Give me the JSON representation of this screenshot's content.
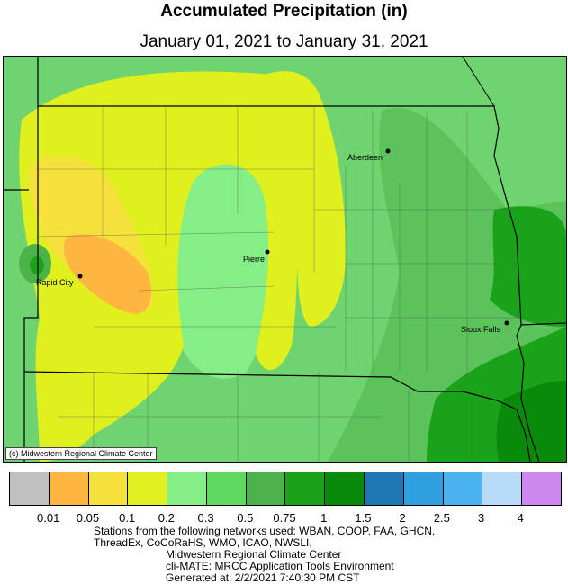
{
  "header": {
    "title": "Accumulated Precipitation (in)",
    "subtitle": "January 01, 2021 to January 31, 2021"
  },
  "map": {
    "credit": "(c) Midwestern Regional Climate Center",
    "cities": [
      "Aberdeen",
      "Pierre",
      "Rapid City",
      "Sioux Falls"
    ]
  },
  "legend": {
    "colors": [
      "#c0c0c0",
      "#ffb640",
      "#f5e03c",
      "#e0f020",
      "#86ee86",
      "#5fd85f",
      "#4cb34c",
      "#1aa31a",
      "#0a8a0a",
      "#1f78b4",
      "#2f9fe0",
      "#4ab4ee",
      "#b8dcf8",
      "#cc88ee"
    ],
    "labels": [
      "0.01",
      "0.05",
      "0.1",
      "0.2",
      "0.3",
      "0.5",
      "0.75",
      "1",
      "1.5",
      "2",
      "2.5",
      "3",
      "4"
    ]
  },
  "footer": {
    "line1": "Stations from the following networks used: WBAN, COOP, FAA, GHCN,",
    "line2": "ThreadEx, CoCoRaHS, WMO, ICAO, NWSLI,",
    "line3": "Midwestern Regional Climate Center",
    "line4": "cli-MATE: MRCC Application Tools Environment",
    "line5": "Generated at: 2/2/2021 7:40:30 PM CST"
  }
}
